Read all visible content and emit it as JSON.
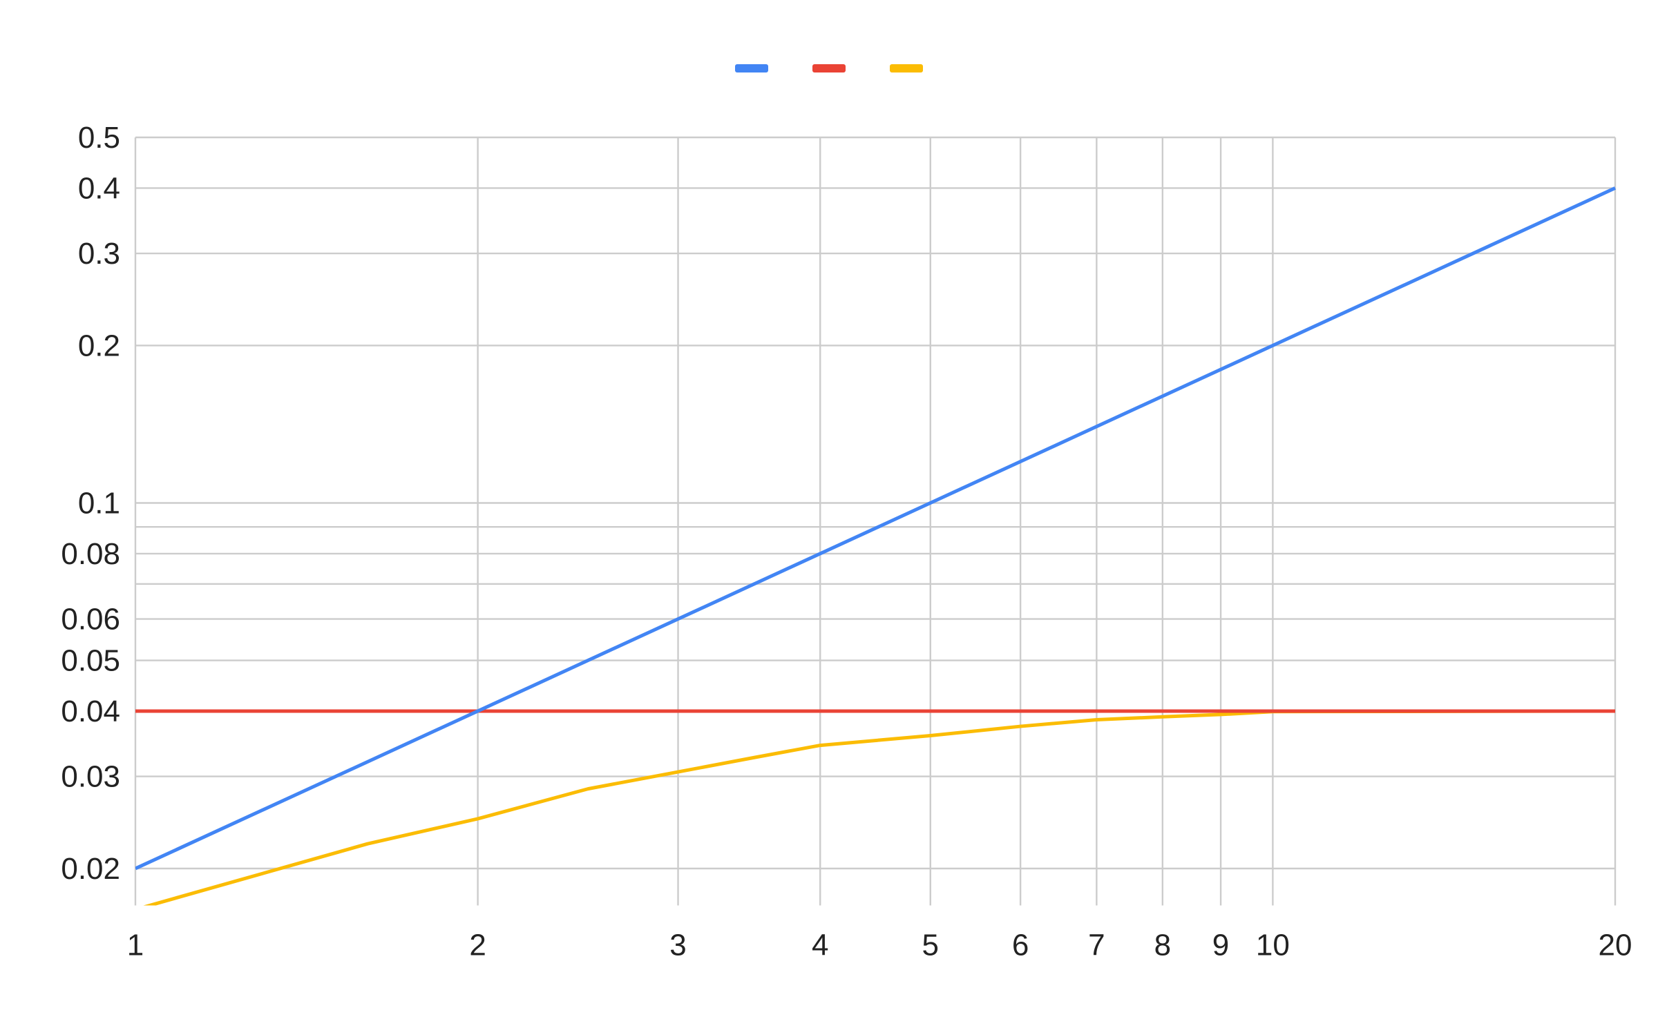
{
  "chart_data": {
    "type": "line",
    "title": "",
    "xlabel": "",
    "ylabel": "",
    "x_scale": "log",
    "y_scale": "log",
    "xlim": [
      1,
      20
    ],
    "ylim": [
      0.017,
      0.5
    ],
    "grid": true,
    "legend": "top-center",
    "x_ticks": [
      {
        "value": 1,
        "label": "1"
      },
      {
        "value": 2,
        "label": "2"
      },
      {
        "value": 3,
        "label": "3"
      },
      {
        "value": 4,
        "label": "4"
      },
      {
        "value": 5,
        "label": "5"
      },
      {
        "value": 6,
        "label": "6"
      },
      {
        "value": 7,
        "label": "7"
      },
      {
        "value": 8,
        "label": "8"
      },
      {
        "value": 9,
        "label": "9"
      },
      {
        "value": 10,
        "label": "10"
      },
      {
        "value": 20,
        "label": "20"
      }
    ],
    "y_ticks": [
      {
        "value": 0.02,
        "label": "0.02"
      },
      {
        "value": 0.03,
        "label": "0.03"
      },
      {
        "value": 0.04,
        "label": "0.04"
      },
      {
        "value": 0.05,
        "label": "0.05"
      },
      {
        "value": 0.06,
        "label": "0.06"
      },
      {
        "value": 0.07,
        "label": ""
      },
      {
        "value": 0.08,
        "label": "0.08"
      },
      {
        "value": 0.09,
        "label": ""
      },
      {
        "value": 0.1,
        "label": "0.1"
      },
      {
        "value": 0.2,
        "label": "0.2"
      },
      {
        "value": 0.3,
        "label": "0.3"
      },
      {
        "value": 0.4,
        "label": "0.4"
      },
      {
        "value": 0.5,
        "label": "0.5"
      }
    ],
    "series": [
      {
        "color": "#4285f4",
        "points": [
          [
            1,
            0.02
          ],
          [
            20,
            0.4
          ]
        ]
      },
      {
        "color": "#ea4335",
        "points": [
          [
            1,
            0.04
          ],
          [
            20,
            0.04
          ]
        ]
      },
      {
        "color": "#fbbc04",
        "points": [
          [
            1,
            0.0167
          ],
          [
            1.6,
            0.0223
          ],
          [
            2,
            0.0249
          ],
          [
            2.5,
            0.0284
          ],
          [
            3,
            0.0306
          ],
          [
            3.5,
            0.0326
          ],
          [
            4,
            0.0344
          ],
          [
            5,
            0.0359
          ],
          [
            6,
            0.0374
          ],
          [
            7,
            0.0385
          ],
          [
            8,
            0.039
          ],
          [
            9,
            0.0394
          ],
          [
            10,
            0.0399
          ],
          [
            20,
            0.04
          ]
        ]
      }
    ]
  }
}
